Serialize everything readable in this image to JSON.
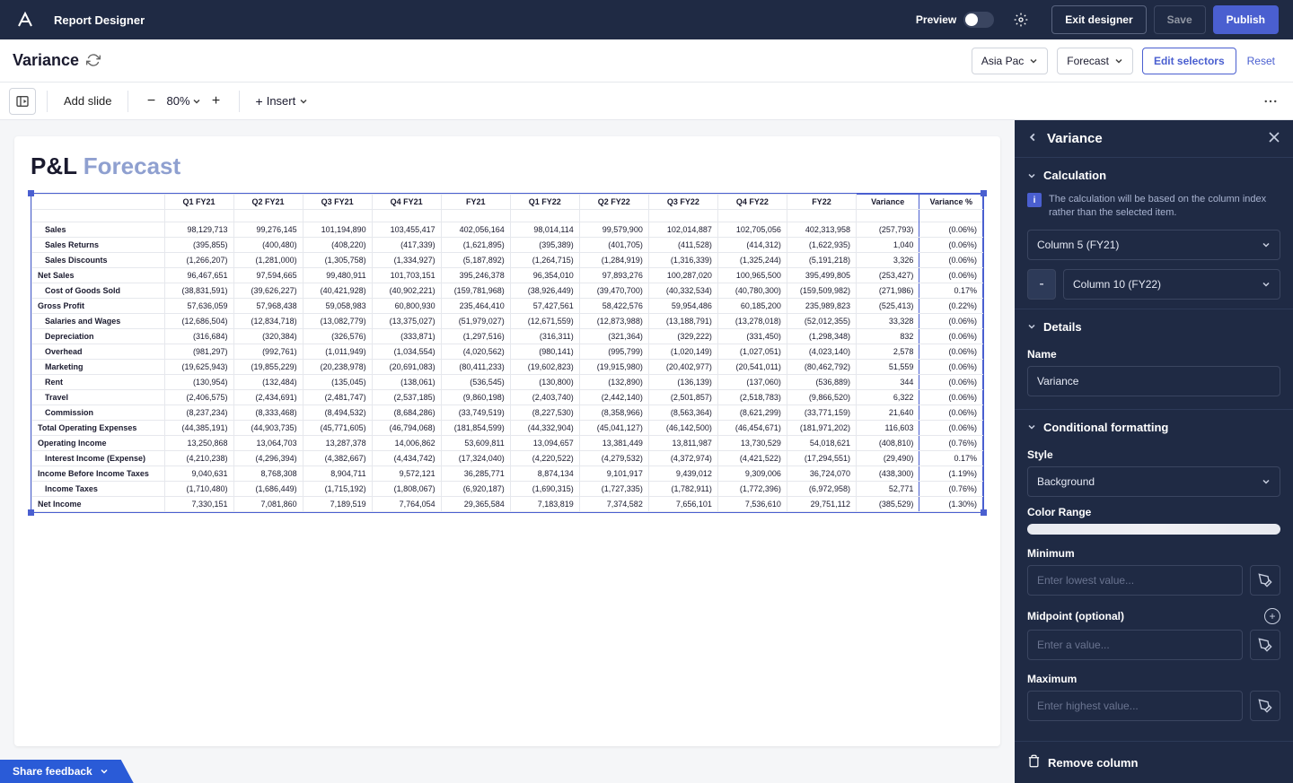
{
  "header": {
    "app_title": "Report Designer",
    "preview_label": "Preview",
    "exit_label": "Exit designer",
    "save_label": "Save",
    "publish_label": "Publish"
  },
  "page": {
    "title": "Variance",
    "selector_region": "Asia Pac",
    "selector_version": "Forecast",
    "edit_selectors": "Edit selectors",
    "reset": "Reset"
  },
  "toolbar": {
    "add_slide": "Add slide",
    "zoom": "80%",
    "insert": "Insert"
  },
  "slide": {
    "title_part1": "P&L ",
    "title_part2": "Forecast"
  },
  "table": {
    "headers": [
      "Q1 FY21",
      "Q2 FY21",
      "Q3 FY21",
      "Q4 FY21",
      "FY21",
      "Q1 FY22",
      "Q2 FY22",
      "Q3 FY22",
      "Q4 FY22",
      "FY22",
      "Variance",
      "Variance %"
    ],
    "rows": [
      {
        "indent": 1,
        "label": "Sales",
        "v": [
          "98,129,713",
          "99,276,145",
          "101,194,890",
          "103,455,417",
          "402,056,164",
          "98,014,114",
          "99,579,900",
          "102,014,887",
          "102,705,056",
          "402,313,958",
          "(257,793)",
          "(0.06%)"
        ]
      },
      {
        "indent": 1,
        "label": "Sales Returns",
        "v": [
          "(395,855)",
          "(400,480)",
          "(408,220)",
          "(417,339)",
          "(1,621,895)",
          "(395,389)",
          "(401,705)",
          "(411,528)",
          "(414,312)",
          "(1,622,935)",
          "1,040",
          "(0.06%)"
        ]
      },
      {
        "indent": 1,
        "label": "Sales Discounts",
        "v": [
          "(1,266,207)",
          "(1,281,000)",
          "(1,305,758)",
          "(1,334,927)",
          "(5,187,892)",
          "(1,264,715)",
          "(1,284,919)",
          "(1,316,339)",
          "(1,325,244)",
          "(5,191,218)",
          "3,326",
          "(0.06%)"
        ]
      },
      {
        "indent": 0,
        "label": "Net Sales",
        "v": [
          "96,467,651",
          "97,594,665",
          "99,480,911",
          "101,703,151",
          "395,246,378",
          "96,354,010",
          "97,893,276",
          "100,287,020",
          "100,965,500",
          "395,499,805",
          "(253,427)",
          "(0.06%)"
        ]
      },
      {
        "indent": 1,
        "label": "Cost of Goods Sold",
        "v": [
          "(38,831,591)",
          "(39,626,227)",
          "(40,421,928)",
          "(40,902,221)",
          "(159,781,968)",
          "(38,926,449)",
          "(39,470,700)",
          "(40,332,534)",
          "(40,780,300)",
          "(159,509,982)",
          "(271,986)",
          "0.17%"
        ]
      },
      {
        "indent": 0,
        "label": "Gross Profit",
        "v": [
          "57,636,059",
          "57,968,438",
          "59,058,983",
          "60,800,930",
          "235,464,410",
          "57,427,561",
          "58,422,576",
          "59,954,486",
          "60,185,200",
          "235,989,823",
          "(525,413)",
          "(0.22%)"
        ]
      },
      {
        "indent": 1,
        "label": "Salaries and Wages",
        "v": [
          "(12,686,504)",
          "(12,834,718)",
          "(13,082,779)",
          "(13,375,027)",
          "(51,979,027)",
          "(12,671,559)",
          "(12,873,988)",
          "(13,188,791)",
          "(13,278,018)",
          "(52,012,355)",
          "33,328",
          "(0.06%)"
        ]
      },
      {
        "indent": 1,
        "label": "Depreciation",
        "v": [
          "(316,684)",
          "(320,384)",
          "(326,576)",
          "(333,871)",
          "(1,297,516)",
          "(316,311)",
          "(321,364)",
          "(329,222)",
          "(331,450)",
          "(1,298,348)",
          "832",
          "(0.06%)"
        ]
      },
      {
        "indent": 1,
        "label": "Overhead",
        "v": [
          "(981,297)",
          "(992,761)",
          "(1,011,949)",
          "(1,034,554)",
          "(4,020,562)",
          "(980,141)",
          "(995,799)",
          "(1,020,149)",
          "(1,027,051)",
          "(4,023,140)",
          "2,578",
          "(0.06%)"
        ]
      },
      {
        "indent": 1,
        "label": "Marketing",
        "v": [
          "(19,625,943)",
          "(19,855,229)",
          "(20,238,978)",
          "(20,691,083)",
          "(80,411,233)",
          "(19,602,823)",
          "(19,915,980)",
          "(20,402,977)",
          "(20,541,011)",
          "(80,462,792)",
          "51,559",
          "(0.06%)"
        ]
      },
      {
        "indent": 1,
        "label": "Rent",
        "v": [
          "(130,954)",
          "(132,484)",
          "(135,045)",
          "(138,061)",
          "(536,545)",
          "(130,800)",
          "(132,890)",
          "(136,139)",
          "(137,060)",
          "(536,889)",
          "344",
          "(0.06%)"
        ]
      },
      {
        "indent": 1,
        "label": "Travel",
        "v": [
          "(2,406,575)",
          "(2,434,691)",
          "(2,481,747)",
          "(2,537,185)",
          "(9,860,198)",
          "(2,403,740)",
          "(2,442,140)",
          "(2,501,857)",
          "(2,518,783)",
          "(9,866,520)",
          "6,322",
          "(0.06%)"
        ]
      },
      {
        "indent": 1,
        "label": "Commission",
        "v": [
          "(8,237,234)",
          "(8,333,468)",
          "(8,494,532)",
          "(8,684,286)",
          "(33,749,519)",
          "(8,227,530)",
          "(8,358,966)",
          "(8,563,364)",
          "(8,621,299)",
          "(33,771,159)",
          "21,640",
          "(0.06%)"
        ]
      },
      {
        "indent": 0,
        "label": "Total Operating Expenses",
        "v": [
          "(44,385,191)",
          "(44,903,735)",
          "(45,771,605)",
          "(46,794,068)",
          "(181,854,599)",
          "(44,332,904)",
          "(45,041,127)",
          "(46,142,500)",
          "(46,454,671)",
          "(181,971,202)",
          "116,603",
          "(0.06%)"
        ]
      },
      {
        "indent": 0,
        "label": "Operating Income",
        "v": [
          "13,250,868",
          "13,064,703",
          "13,287,378",
          "14,006,862",
          "53,609,811",
          "13,094,657",
          "13,381,449",
          "13,811,987",
          "13,730,529",
          "54,018,621",
          "(408,810)",
          "(0.76%)"
        ]
      },
      {
        "indent": 1,
        "label": "Interest Income (Expense)",
        "v": [
          "(4,210,238)",
          "(4,296,394)",
          "(4,382,667)",
          "(4,434,742)",
          "(17,324,040)",
          "(4,220,522)",
          "(4,279,532)",
          "(4,372,974)",
          "(4,421,522)",
          "(17,294,551)",
          "(29,490)",
          "0.17%"
        ]
      },
      {
        "indent": 0,
        "label": "Income Before Income Taxes",
        "v": [
          "9,040,631",
          "8,768,308",
          "8,904,711",
          "9,572,121",
          "36,285,771",
          "8,874,134",
          "9,101,917",
          "9,439,012",
          "9,309,006",
          "36,724,070",
          "(438,300)",
          "(1.19%)"
        ]
      },
      {
        "indent": 1,
        "label": "Income Taxes",
        "v": [
          "(1,710,480)",
          "(1,686,449)",
          "(1,715,192)",
          "(1,808,067)",
          "(6,920,187)",
          "(1,690,315)",
          "(1,727,335)",
          "(1,782,911)",
          "(1,772,396)",
          "(6,972,958)",
          "52,771",
          "(0.76%)"
        ]
      },
      {
        "indent": 0,
        "label": "Net Income",
        "v": [
          "7,330,151",
          "7,081,860",
          "7,189,519",
          "7,764,054",
          "29,365,584",
          "7,183,819",
          "7,374,582",
          "7,656,101",
          "7,536,610",
          "29,751,112",
          "(385,529)",
          "(1.30%)"
        ]
      }
    ]
  },
  "panel": {
    "title": "Variance",
    "section_calc": "Calculation",
    "calc_info": "The calculation will be based on the column index rather than the selected item.",
    "col_a": "Column 5 (FY21)",
    "operator": "-",
    "col_b": "Column 10 (FY22)",
    "section_details": "Details",
    "name_label": "Name",
    "name_value": "Variance",
    "section_condfmt": "Conditional formatting",
    "style_label": "Style",
    "style_value": "Background",
    "color_range_label": "Color Range",
    "min_label": "Minimum",
    "min_placeholder": "Enter lowest value...",
    "mid_label": "Midpoint (optional)",
    "mid_placeholder": "Enter a value...",
    "max_label": "Maximum",
    "max_placeholder": "Enter highest value...",
    "remove_col": "Remove column"
  },
  "feedback": "Share feedback"
}
